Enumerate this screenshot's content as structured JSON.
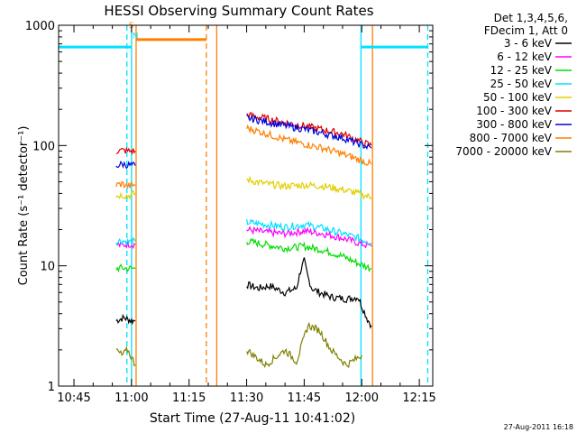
{
  "chart_data": {
    "type": "line",
    "title": "HESSI Observing Summary Count Rates",
    "xlabel": "Start Time (27-Aug-11 10:41:02)",
    "ylabel": "Count Rate (s⁻¹ detector⁻¹)",
    "ylog": true,
    "ylim": [
      1,
      1000
    ],
    "xlim_minutes": [
      41.0,
      138.5
    ],
    "x_ticks": [
      {
        "label": "10:45",
        "minutes": 45
      },
      {
        "label": "11:00",
        "minutes": 60
      },
      {
        "label": "11:15",
        "minutes": 75
      },
      {
        "label": "11:30",
        "minutes": 90
      },
      {
        "label": "11:45",
        "minutes": 105
      },
      {
        "label": "12:00",
        "minutes": 120
      },
      {
        "label": "12:15",
        "minutes": 135
      }
    ],
    "y_ticks": [
      {
        "label": "1",
        "value": 1
      },
      {
        "label": "10",
        "value": 10
      },
      {
        "label": "100",
        "value": 100
      },
      {
        "label": "1000",
        "value": 1000
      }
    ],
    "legend_header": [
      "Det 1,3,4,5,6,",
      "FDecim 1, Att 0"
    ],
    "legend_position": "right",
    "series": [
      {
        "name": "3 - 6 keV",
        "color": "#000000",
        "segments": [
          {
            "x": [
              56.0,
              57.0,
              58.0,
              59.0,
              60.0,
              61.0
            ],
            "y": [
              3.5,
              3.6,
              3.7,
              3.6,
              3.5,
              3.5
            ]
          },
          {
            "x": [
              90.0,
              93.0,
              96.0,
              100.0,
              103.0,
              104.0,
              105.0,
              106.0,
              107.0,
              109.0,
              112.0,
              116.0,
              119.0,
              121.5,
              122.5
            ],
            "y": [
              7.0,
              6.5,
              6.8,
              6.0,
              6.5,
              9.0,
              11.0,
              8.0,
              6.5,
              6.0,
              5.5,
              5.3,
              5.5,
              3.6,
              3.2
            ]
          }
        ]
      },
      {
        "name": "6 - 12 keV",
        "color": "#ff00ff",
        "segments": [
          {
            "x": [
              56.0,
              57.5,
              59.0,
              61.0
            ],
            "y": [
              15.0,
              14.8,
              15.2,
              15.0
            ]
          },
          {
            "x": [
              90.0,
              95.0,
              100.0,
              105.0,
              110.0,
              115.0,
              119.0,
              122.5
            ],
            "y": [
              20.0,
              19.0,
              18.5,
              19.5,
              18.5,
              17.0,
              15.5,
              14.5
            ]
          }
        ]
      },
      {
        "name": "12 - 25 keV",
        "color": "#00dd00",
        "segments": [
          {
            "x": [
              56.0,
              57.5,
              59.0,
              61.0
            ],
            "y": [
              9.5,
              9.6,
              9.5,
              9.5
            ]
          },
          {
            "x": [
              90.0,
              95.0,
              100.0,
              105.0,
              110.0,
              115.0,
              119.0,
              122.5
            ],
            "y": [
              16.0,
              15.0,
              14.0,
              14.5,
              13.5,
              12.0,
              10.5,
              9.5
            ]
          }
        ]
      },
      {
        "name": "25 - 50 keV",
        "color": "#00e0ff",
        "segments": [
          {
            "x": [
              56.0,
              57.5,
              59.0,
              61.0
            ],
            "y": [
              16.0,
              16.2,
              15.8,
              16.0
            ]
          },
          {
            "x": [
              90.0,
              95.0,
              100.0,
              105.0,
              110.0,
              115.0,
              119.0,
              122.5
            ],
            "y": [
              23.0,
              22.0,
              21.0,
              22.0,
              20.5,
              18.5,
              17.0,
              15.5
            ]
          },
          {
            "x": [
              41.0,
              60.0
            ],
            "y": [
              660,
              660
            ]
          },
          {
            "x": [
              119.8,
              137.2
            ],
            "y": [
              660,
              660
            ]
          }
        ]
      },
      {
        "name": "50 - 100 keV",
        "color": "#e0d000",
        "segments": [
          {
            "x": [
              56.0,
              57.5,
              59.0,
              61.0
            ],
            "y": [
              38.0,
              39.0,
              38.0,
              40.0
            ]
          },
          {
            "x": [
              90.0,
              95.0,
              100.0,
              105.0,
              110.0,
              115.0,
              119.0,
              122.5
            ],
            "y": [
              52.0,
              48.0,
              46.0,
              47.0,
              46.0,
              43.0,
              40.0,
              37.0
            ]
          }
        ]
      },
      {
        "name": "100 - 300 keV",
        "color": "#dd0000",
        "segments": [
          {
            "x": [
              56.0,
              57.5,
              59.0,
              61.0
            ],
            "y": [
              90.0,
              91.0,
              90.0,
              90.0
            ]
          },
          {
            "x": [
              90.0,
              95.0,
              100.0,
              105.0,
              110.0,
              115.0,
              119.0,
              122.5
            ],
            "y": [
              180.0,
              168.0,
              155.0,
              146.0,
              135.0,
              125.0,
              110.0,
              100.0
            ]
          }
        ]
      },
      {
        "name": "300 - 800 keV",
        "color": "#0000dd",
        "segments": [
          {
            "x": [
              56.0,
              57.5,
              59.0,
              61.0
            ],
            "y": [
              68.0,
              70.0,
              69.0,
              68.0
            ]
          },
          {
            "x": [
              90.0,
              95.0,
              100.0,
              105.0,
              110.0,
              115.0,
              119.0,
              122.5
            ],
            "y": [
              170.0,
              158.0,
              146.0,
              137.0,
              126.0,
              116.0,
              104.0,
              95.0
            ]
          }
        ]
      },
      {
        "name": "800 - 7000 keV",
        "color": "#ff8000",
        "segments": [
          {
            "x": [
              56.0,
              57.5,
              59.0,
              61.0
            ],
            "y": [
              47.0,
              48.0,
              46.0,
              47.0
            ]
          },
          {
            "x": [
              90.0,
              95.0,
              100.0,
              105.0,
              110.0,
              115.0,
              119.0,
              122.5
            ],
            "y": [
              140.0,
              126.0,
              112.0,
              103.0,
              95.0,
              85.0,
              77.0,
              70.0
            ]
          },
          {
            "x": [
              61.2,
              79.5
            ],
            "y": [
              760,
              760
            ]
          }
        ]
      },
      {
        "name": "7000 - 20000 keV",
        "color": "#808000",
        "segments": [
          {
            "x": [
              56.0,
              57.5,
              59.0,
              61.0
            ],
            "y": [
              2.0,
              1.8,
              2.0,
              1.5
            ]
          },
          {
            "x": [
              90.0,
              95.0,
              100.0,
              103.0,
              106.0,
              109.0,
              112.0,
              116.0,
              120.0
            ],
            "y": [
              2.0,
              1.5,
              2.0,
              1.6,
              3.2,
              2.9,
              2.0,
              1.5,
              1.8
            ]
          }
        ]
      }
    ],
    "vertical_lines": [
      {
        "x": 58.8,
        "color": "#00e0ff",
        "style": "dashed"
      },
      {
        "x": 60.0,
        "color": "#00e0ff",
        "style": "solid"
      },
      {
        "x": 61.2,
        "color": "#ff8000",
        "style": "solid"
      },
      {
        "x": 79.5,
        "color": "#ff8000",
        "style": "dashed"
      },
      {
        "x": 82.2,
        "color": "#ff8000",
        "style": "solid"
      },
      {
        "x": 119.8,
        "color": "#00e0ff",
        "style": "solid"
      },
      {
        "x": 122.8,
        "color": "#ff8000",
        "style": "solid"
      },
      {
        "x": 137.2,
        "color": "#00e0ff",
        "style": "dashed"
      }
    ],
    "annotations": [
      {
        "text": "S",
        "x": 59.3,
        "y": 950,
        "color": "#ff8000"
      },
      {
        "text": "N",
        "x": 60.2,
        "y": 780,
        "color": "#00e0ff"
      }
    ],
    "footer": "27-Aug-2011 16:18"
  }
}
